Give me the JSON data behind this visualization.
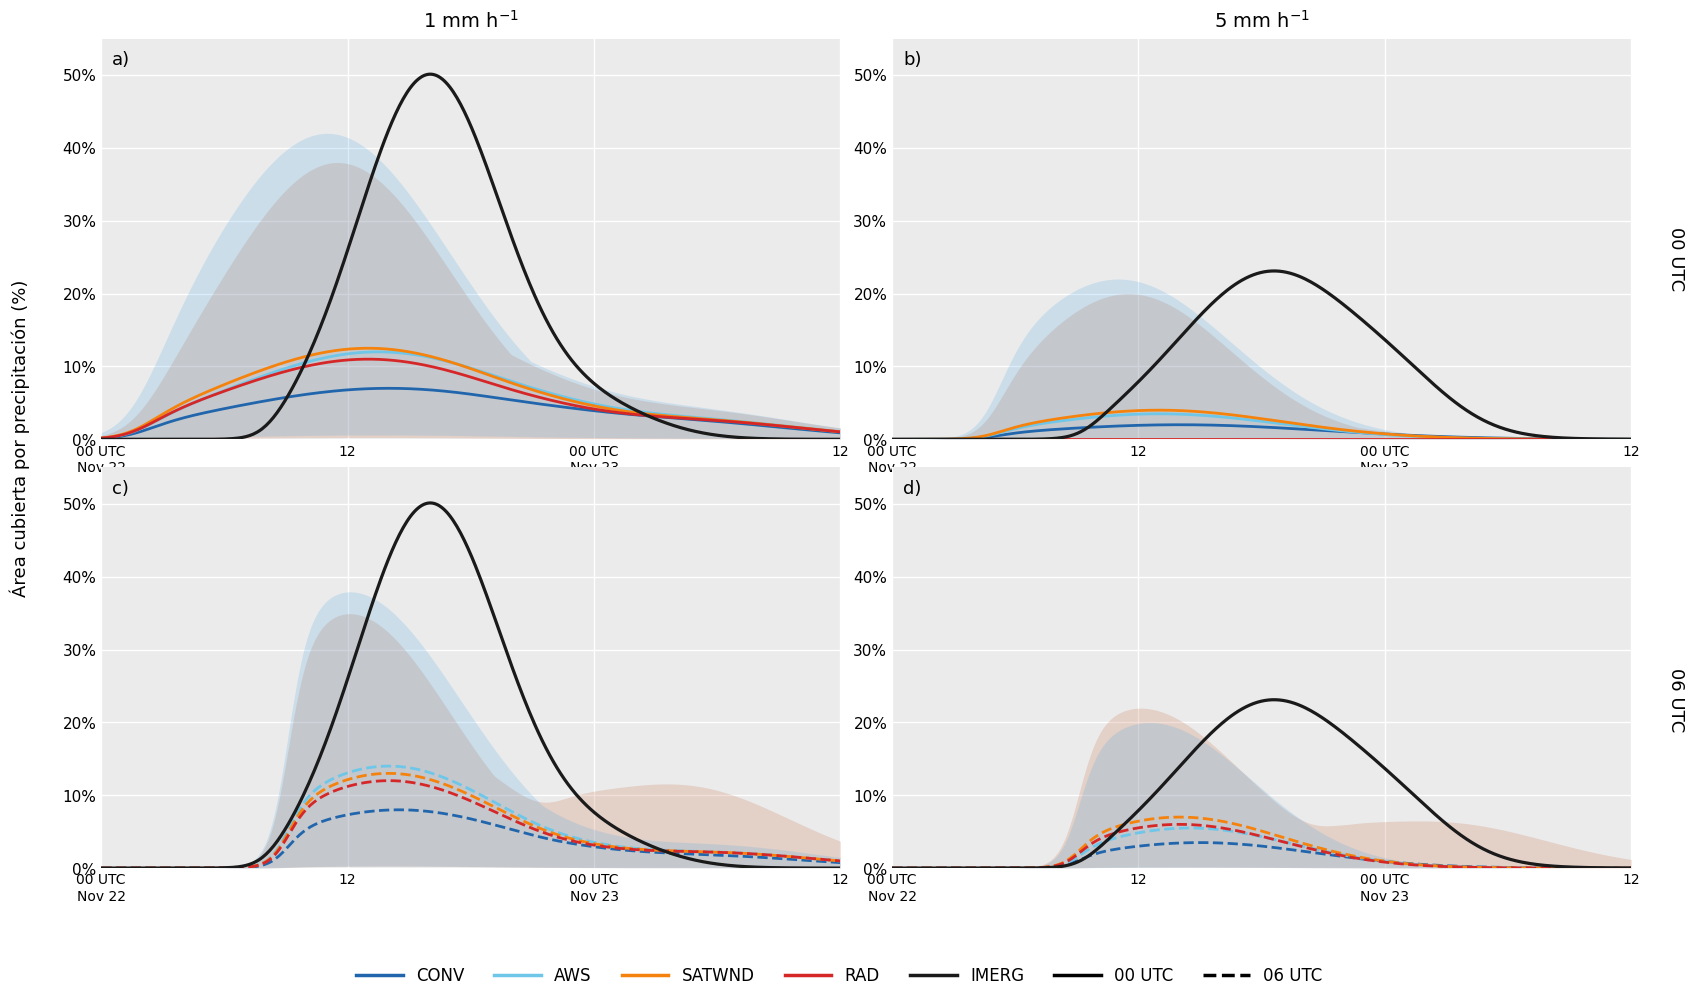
{
  "col_titles": [
    "1 mm h$^{-1}$",
    "5 mm h$^{-1}$"
  ],
  "row_labels": [
    "00 UTC",
    "06 UTC"
  ],
  "panel_labels": [
    "a)",
    "b)",
    "c)",
    "d)"
  ],
  "ylabel": "Área cubierta por precipitación (%)",
  "colors": {
    "CONV": "#2166ac",
    "AWS": "#6ec6e8",
    "SATWND": "#f5820d",
    "RAD": "#d62728",
    "IMERG": "#1a1a1a"
  },
  "fill_colors": {
    "CONV": "#5aade6",
    "AWS": "#5aade6",
    "SATWND": "#d4704a",
    "RAD": "#d4704a"
  },
  "fill_alpha": 0.22,
  "background_color": "#ebebeb",
  "xlim": [
    0,
    36
  ],
  "xtick_positions": [
    0,
    12,
    24,
    36
  ],
  "xtick_labels": [
    "00 UTC\nNov 22",
    "12",
    "00 UTC\nNov 23",
    "12"
  ],
  "yticks": [
    0,
    10,
    20,
    30,
    40,
    50
  ],
  "yticklabels": [
    "0%",
    "10%",
    "20%",
    "30%",
    "40%",
    "50%"
  ],
  "ylim": [
    0,
    55
  ]
}
